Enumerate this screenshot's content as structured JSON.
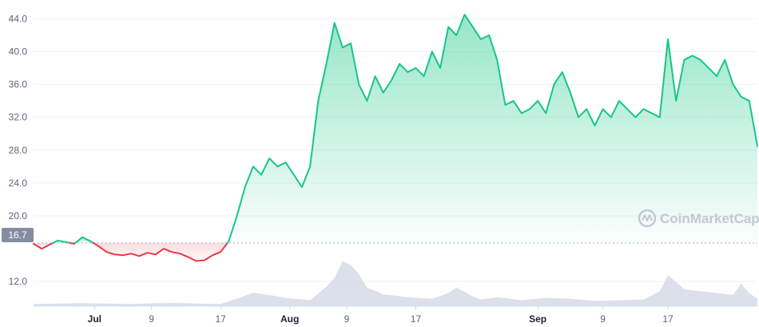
{
  "watermark": "CoinMarketCap",
  "reference_label": "16.7",
  "colors": {
    "up": "#16c784",
    "down": "#ea3943",
    "volume": "#cfd6e4",
    "grid": "#eff2f5",
    "axis_text": "#58667e"
  },
  "chart_data": {
    "type": "line",
    "y_ticks": [
      "12.0",
      "20.0",
      "24.0",
      "28.0",
      "32.0",
      "36.0",
      "40.0",
      "44.0"
    ],
    "x_ticks": [
      {
        "label": "Jul",
        "bold": true
      },
      {
        "label": "9",
        "bold": false
      },
      {
        "label": "17",
        "bold": false
      },
      {
        "label": "Aug",
        "bold": true
      },
      {
        "label": "9",
        "bold": false
      },
      {
        "label": "17",
        "bold": false
      },
      {
        "label": "Sep",
        "bold": true
      },
      {
        "label": "9",
        "bold": false
      },
      {
        "label": "17",
        "bold": false
      }
    ],
    "ylim": [
      9.0,
      45.5
    ],
    "reference_value": 16.7,
    "x_range": [
      0,
      89
    ],
    "price": {
      "x": [
        0,
        1,
        2,
        3,
        4,
        5,
        6,
        7,
        8,
        9,
        10,
        11,
        12,
        13,
        14,
        15,
        16,
        17,
        18,
        19,
        20,
        21,
        22,
        23,
        24,
        25,
        26,
        27,
        28,
        29,
        30,
        31,
        32,
        33,
        34,
        35,
        36,
        37,
        38,
        39,
        40,
        41,
        42,
        43,
        44,
        45,
        46,
        47,
        48,
        49,
        50,
        51,
        52,
        53,
        54,
        55,
        56,
        57,
        58,
        59,
        60,
        61,
        62,
        63,
        64,
        65,
        66,
        67,
        68,
        69,
        70,
        71,
        72,
        73,
        74,
        75,
        76,
        77,
        78,
        79,
        80,
        81,
        82,
        83,
        84,
        85,
        86,
        87,
        88,
        89
      ],
      "y": [
        16.6,
        16.0,
        16.5,
        17.0,
        16.8,
        16.6,
        17.4,
        16.9,
        16.3,
        15.6,
        15.3,
        15.2,
        15.4,
        15.1,
        15.5,
        15.3,
        16.0,
        15.6,
        15.4,
        15.0,
        14.5,
        14.6,
        15.2,
        15.6,
        16.9,
        20.0,
        23.5,
        26.0,
        25.0,
        27.0,
        26.0,
        26.5,
        25.0,
        23.5,
        26.0,
        34.0,
        38.5,
        43.5,
        40.5,
        41.0,
        36.0,
        34.0,
        37.0,
        35.0,
        36.5,
        38.5,
        37.5,
        38.0,
        37.0,
        40.0,
        38.0,
        43.0,
        42.0,
        44.5,
        43.0,
        41.5,
        42.0,
        39.0,
        33.5,
        34.0,
        32.5,
        33.0,
        34.0,
        32.5,
        36.0,
        37.5,
        35.0,
        32.0,
        33.0,
        31.0,
        33.0,
        32.0,
        34.0,
        33.0,
        32.0,
        33.0,
        32.5,
        32.0,
        41.5,
        34.0,
        39.0,
        39.5,
        39.0,
        38.0,
        37.0,
        39.0,
        36.0,
        34.5,
        34.0,
        28.5
      ]
    },
    "volume": {
      "x": [
        0,
        6,
        12,
        17,
        20,
        23,
        25,
        26,
        27,
        29,
        31,
        34,
        36,
        37,
        38,
        39,
        40,
        41,
        43,
        46,
        49,
        51,
        52,
        53,
        54,
        55,
        57,
        60,
        63,
        66,
        69,
        72,
        75,
        77,
        78,
        79,
        80,
        82,
        84,
        86,
        87,
        88,
        89
      ],
      "y": [
        0.6,
        0.8,
        0.6,
        0.9,
        0.7,
        0.6,
        2.0,
        2.8,
        3.6,
        3.0,
        2.2,
        1.6,
        5.2,
        7.5,
        12.0,
        11.0,
        8.5,
        5.0,
        3.2,
        2.4,
        2.0,
        3.5,
        5.0,
        3.8,
        2.6,
        1.8,
        2.4,
        1.6,
        2.2,
        2.0,
        1.4,
        1.6,
        1.8,
        4.0,
        8.2,
        6.5,
        4.5,
        4.0,
        3.5,
        3.0,
        6.0,
        3.5,
        2.0
      ]
    }
  }
}
